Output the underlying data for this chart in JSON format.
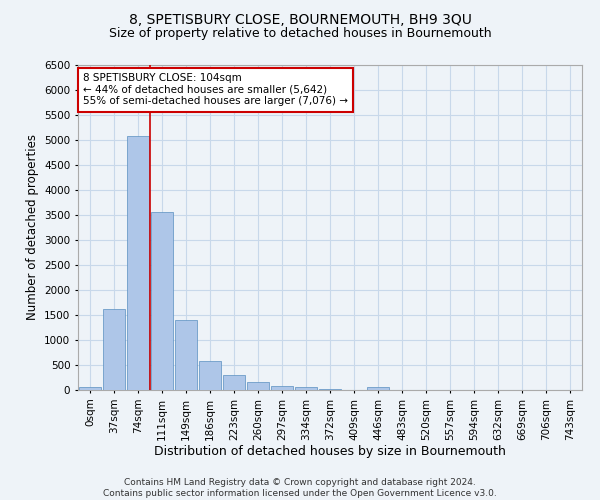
{
  "title": "8, SPETISBURY CLOSE, BOURNEMOUTH, BH9 3QU",
  "subtitle": "Size of property relative to detached houses in Bournemouth",
  "xlabel": "Distribution of detached houses by size in Bournemouth",
  "ylabel": "Number of detached properties",
  "footer_line1": "Contains HM Land Registry data © Crown copyright and database right 2024.",
  "footer_line2": "Contains public sector information licensed under the Open Government Licence v3.0.",
  "bin_labels": [
    "0sqm",
    "37sqm",
    "74sqm",
    "111sqm",
    "149sqm",
    "186sqm",
    "223sqm",
    "260sqm",
    "297sqm",
    "334sqm",
    "372sqm",
    "409sqm",
    "446sqm",
    "483sqm",
    "520sqm",
    "557sqm",
    "594sqm",
    "632sqm",
    "669sqm",
    "706sqm",
    "743sqm"
  ],
  "bar_heights": [
    70,
    1620,
    5080,
    3560,
    1400,
    590,
    300,
    155,
    90,
    55,
    25,
    10,
    70,
    0,
    0,
    0,
    0,
    0,
    0,
    0,
    0
  ],
  "bar_color": "#aec6e8",
  "bar_edgecolor": "#5a8fc0",
  "grid_color": "#c8d8ea",
  "background_color": "#eef3f8",
  "vline_color": "#cc0000",
  "annotation_text": "8 SPETISBURY CLOSE: 104sqm\n← 44% of detached houses are smaller (5,642)\n55% of semi-detached houses are larger (7,076) →",
  "annotation_box_color": "#ffffff",
  "annotation_border_color": "#cc0000",
  "ylim": [
    0,
    6500
  ],
  "yticks": [
    0,
    500,
    1000,
    1500,
    2000,
    2500,
    3000,
    3500,
    4000,
    4500,
    5000,
    5500,
    6000,
    6500
  ],
  "title_fontsize": 10,
  "subtitle_fontsize": 9,
  "xlabel_fontsize": 9,
  "ylabel_fontsize": 8.5,
  "tick_fontsize": 7.5,
  "annotation_fontsize": 7.5,
  "footer_fontsize": 6.5
}
